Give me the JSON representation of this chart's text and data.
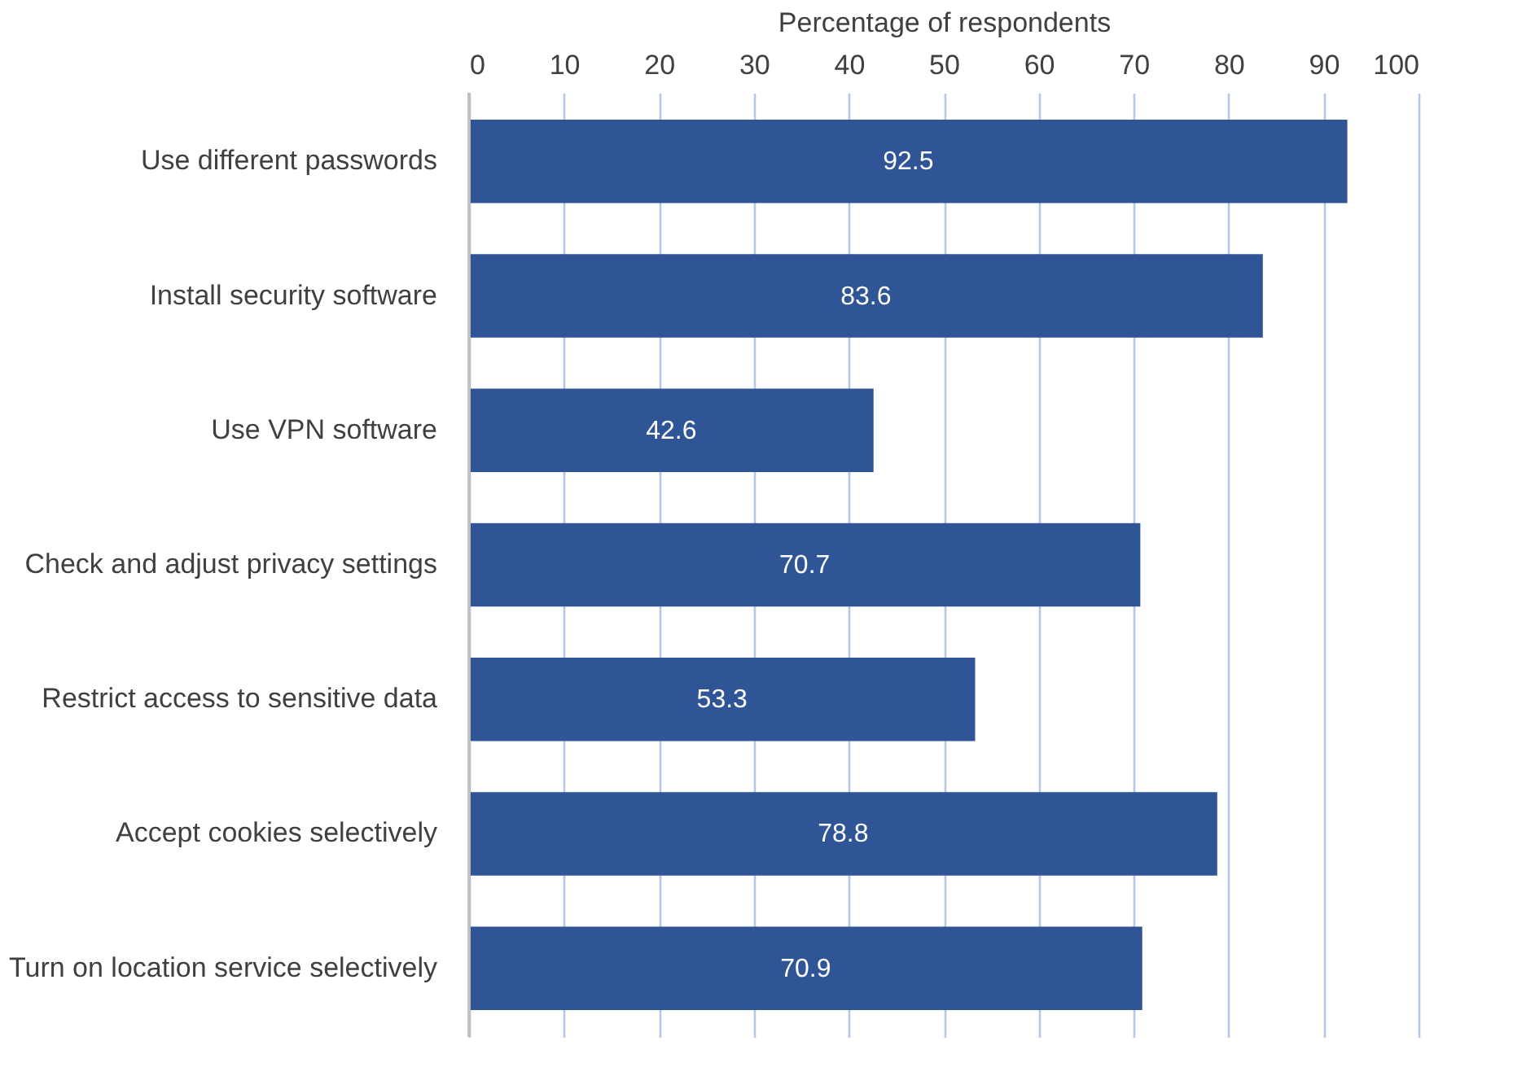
{
  "chart_data": {
    "type": "bar",
    "orientation": "horizontal",
    "xlabel": "Percentage of respondents",
    "categories": [
      "Use different passwords",
      "Install security software",
      "Use VPN software",
      "Check and adjust privacy settings",
      "Restrict access to sensitive data",
      "Accept cookies selectively",
      "Turn on location service selectively"
    ],
    "values": [
      92.5,
      83.6,
      42.6,
      70.7,
      53.3,
      78.8,
      70.9
    ],
    "color": "#2f5597",
    "xlim": [
      0,
      100
    ],
    "xticks": [
      0,
      10,
      20,
      30,
      40,
      50,
      60,
      70,
      80,
      90,
      100
    ],
    "grid": "x",
    "data_labels": true
  }
}
